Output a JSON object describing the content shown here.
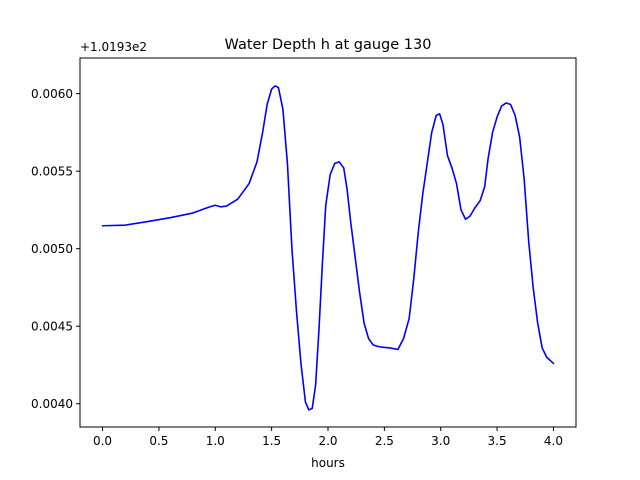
{
  "chart_data": {
    "type": "line",
    "title": "Water Depth h at gauge 130",
    "xlabel": "hours",
    "ylabel": "",
    "offset_label": "+1.0193e2",
    "xlim": [
      -0.2,
      4.2
    ],
    "ylim": [
      0.00385,
      0.00623
    ],
    "xticks": [
      0.0,
      0.5,
      1.0,
      1.5,
      2.0,
      2.5,
      3.0,
      3.5,
      4.0
    ],
    "xtick_labels": [
      "0.0",
      "0.5",
      "1.0",
      "1.5",
      "2.0",
      "2.5",
      "3.0",
      "3.5",
      "4.0"
    ],
    "yticks": [
      0.004,
      0.0045,
      0.005,
      0.0055,
      0.006
    ],
    "ytick_labels": [
      "0.0040",
      "0.0045",
      "0.0050",
      "0.0055",
      "0.0060"
    ],
    "grid": false,
    "series": [
      {
        "color": "#0000ff",
        "x": [
          0.0,
          0.2,
          0.4,
          0.6,
          0.8,
          0.95,
          1.0,
          1.05,
          1.1,
          1.2,
          1.3,
          1.37,
          1.42,
          1.46,
          1.5,
          1.53,
          1.56,
          1.6,
          1.64,
          1.68,
          1.72,
          1.76,
          1.8,
          1.83,
          1.86,
          1.89,
          1.92,
          1.95,
          1.98,
          2.02,
          2.06,
          2.1,
          2.14,
          2.17,
          2.2,
          2.24,
          2.28,
          2.32,
          2.36,
          2.4,
          2.44,
          2.48,
          2.55,
          2.62,
          2.67,
          2.72,
          2.76,
          2.8,
          2.84,
          2.88,
          2.92,
          2.96,
          2.99,
          3.02,
          3.06,
          3.1,
          3.14,
          3.18,
          3.22,
          3.26,
          3.3,
          3.35,
          3.39,
          3.42,
          3.46,
          3.5,
          3.54,
          3.58,
          3.62,
          3.66,
          3.7,
          3.74,
          3.78,
          3.82,
          3.86,
          3.9,
          3.94,
          3.97,
          4.0
        ],
        "y": [
          0.005148,
          0.005152,
          0.005175,
          0.0052,
          0.00523,
          0.00527,
          0.00528,
          0.00527,
          0.005275,
          0.00532,
          0.00542,
          0.00556,
          0.00575,
          0.00593,
          0.00603,
          0.00605,
          0.00604,
          0.0059,
          0.00555,
          0.005,
          0.0046,
          0.00426,
          0.00401,
          0.00396,
          0.00397,
          0.00412,
          0.00448,
          0.0049,
          0.00528,
          0.00548,
          0.00555,
          0.00556,
          0.00552,
          0.00538,
          0.00518,
          0.00495,
          0.00472,
          0.00452,
          0.00442,
          0.00438,
          0.00437,
          0.004365,
          0.00436,
          0.00435,
          0.00442,
          0.00455,
          0.0048,
          0.0051,
          0.00535,
          0.00555,
          0.00575,
          0.00586,
          0.00587,
          0.0058,
          0.0056,
          0.00552,
          0.00542,
          0.00525,
          0.00519,
          0.00521,
          0.00526,
          0.00531,
          0.0054,
          0.00558,
          0.00575,
          0.00585,
          0.00592,
          0.00594,
          0.00593,
          0.00586,
          0.00572,
          0.00545,
          0.00505,
          0.00475,
          0.00452,
          0.00436,
          0.0043,
          0.00428,
          0.00426
        ]
      }
    ]
  }
}
